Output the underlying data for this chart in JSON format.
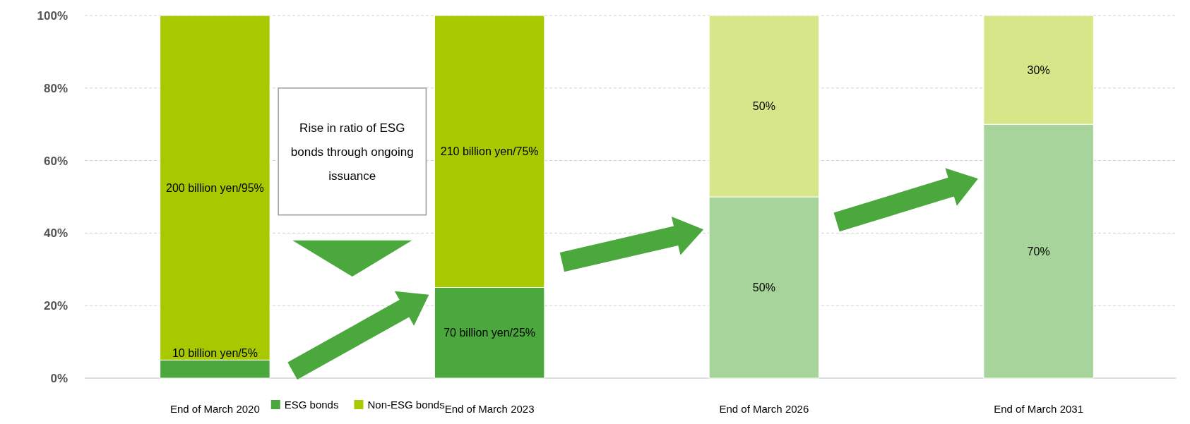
{
  "chart_data": {
    "type": "bar",
    "stacked": true,
    "categories": [
      "End of March 2020",
      "End of March 2023",
      "End of March 2026",
      "End of March 2031"
    ],
    "series": [
      {
        "name": "ESG bonds",
        "color": "#4aa83c",
        "colors": [
          "#4aa83c",
          "#4aa83c",
          "#a6d49a",
          "#a6d49a"
        ],
        "values": [
          5,
          25,
          50,
          70
        ],
        "value_labels": [
          "10 billion yen/5%",
          "70 billion yen/25%",
          "50%",
          "70%"
        ]
      },
      {
        "name": "Non-ESG bonds",
        "color": "#a8c800",
        "colors": [
          "#a8c800",
          "#a8c800",
          "#d8e68a",
          "#d8e68a"
        ],
        "values": [
          95,
          75,
          50,
          30
        ],
        "value_labels": [
          "200 billion yen/95%",
          "210 billion yen/75%",
          "50%",
          "30%"
        ]
      }
    ],
    "ylim": [
      0,
      100
    ],
    "yticks": [
      {
        "value": 0,
        "label": "0%"
      },
      {
        "value": 20,
        "label": "20%"
      },
      {
        "value": 40,
        "label": "40%"
      },
      {
        "value": 60,
        "label": "60%"
      },
      {
        "value": 80,
        "label": "80%"
      },
      {
        "value": 100,
        "label": "100%"
      }
    ],
    "grid": "y",
    "legend": "bottom",
    "annotations": [
      "Rise in ratio of ESG bonds through ongoing issuance"
    ]
  }
}
